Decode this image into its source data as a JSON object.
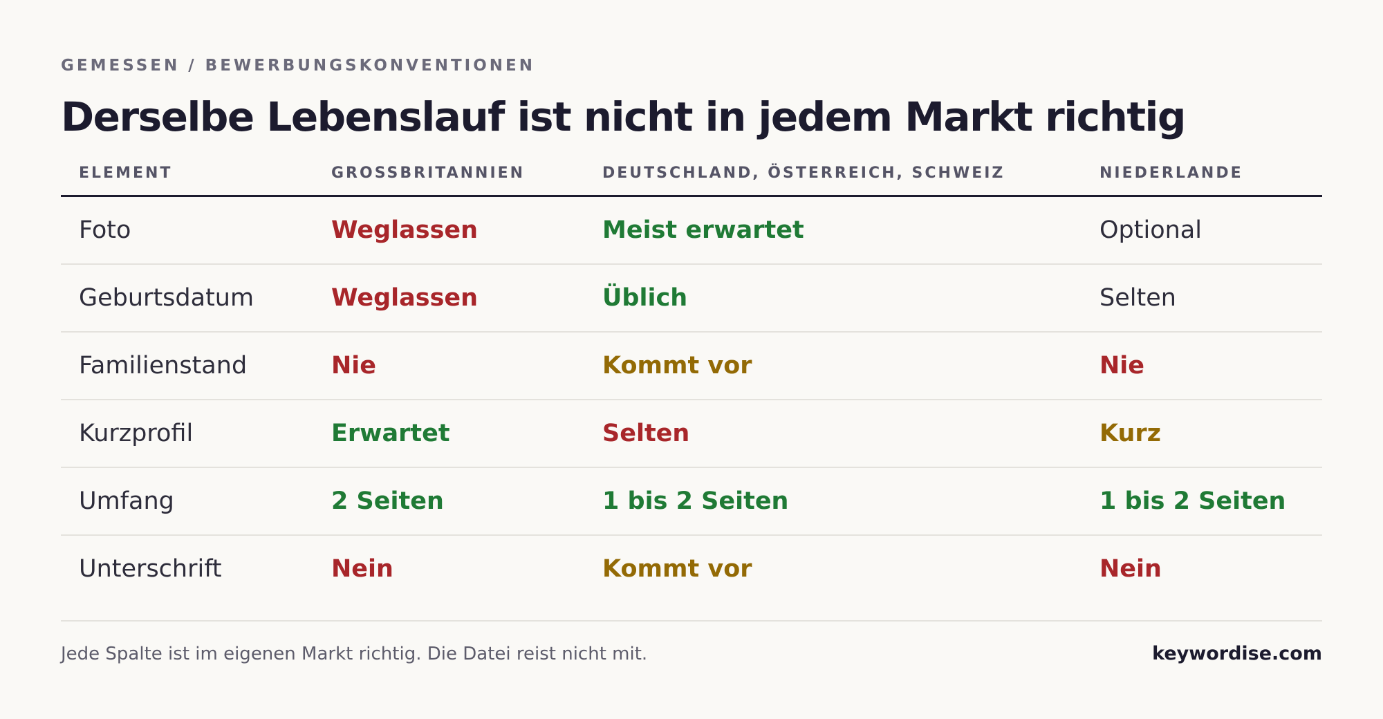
{
  "eyebrow": "GEMESSEN / BEWERBUNGSKONVENTIONEN",
  "title": "Derselbe Lebenslauf ist nicht in jedem Markt richtig",
  "table": {
    "columns": [
      "ELEMENT",
      "GROSSBRITANNIEN",
      "DEUTSCHLAND, ÖSTERREICH, SCHWEIZ",
      "NIEDERLANDE"
    ],
    "rows": [
      {
        "label": "Foto",
        "uk": "Weglassen",
        "dach": "Meist erwartet",
        "nl": "Optional"
      },
      {
        "label": "Geburtsdatum",
        "uk": "Weglassen",
        "dach": "Üblich",
        "nl": "Selten"
      },
      {
        "label": "Familienstand",
        "uk": "Nie",
        "dach": "Kommt vor",
        "nl": "Nie"
      },
      {
        "label": "Kurzprofil",
        "uk": "Erwartet",
        "dach": "Selten",
        "nl": "Kurz"
      },
      {
        "label": "Umfang",
        "uk": "2 Seiten",
        "dach": "1 bis 2 Seiten",
        "nl": "1 bis 2 Seiten"
      },
      {
        "label": "Unterschrift",
        "uk": "Nein",
        "dach": "Kommt vor",
        "nl": "Nein"
      }
    ]
  },
  "colors": {
    "negative": "#a8262a",
    "positive": "#1f7a35",
    "caution": "#936a05",
    "neutral": "#2e2d3b"
  },
  "footer": {
    "note": "Jede Spalte ist im eigenen Markt richtig. Die Datei reist nicht mit.",
    "brand": "keywordise.com"
  }
}
